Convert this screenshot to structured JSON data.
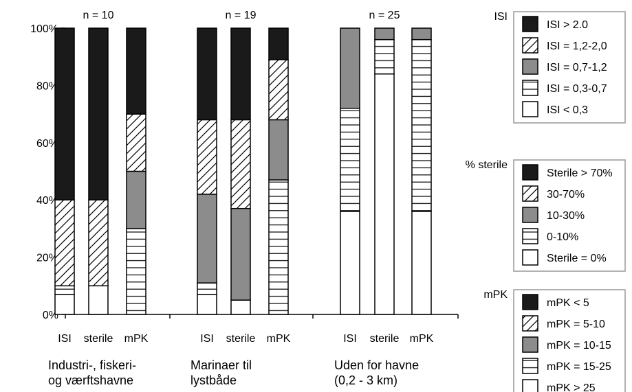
{
  "colors": {
    "black": "#1a1a1a",
    "gray": "#8c8c8c",
    "white": "#ffffff",
    "stroke": "#000000",
    "legend_border": "#999999"
  },
  "chart_data": {
    "type": "bar",
    "stacked": true,
    "ylim": [
      0,
      100
    ],
    "yticks": [
      "0%",
      "20%",
      "40%",
      "60%",
      "80%",
      "100%"
    ],
    "categories": [
      "ISI",
      "sterile",
      "mPK",
      "ISI",
      "sterile",
      "mPK",
      "ISI",
      "sterile",
      "mPK"
    ],
    "groups": [
      {
        "n_label": "n = 10",
        "caption": [
          "Industri-, fiskeri-",
          "og værftshavne"
        ]
      },
      {
        "n_label": "n = 19",
        "caption": [
          "Marinaer til",
          "lystbåde"
        ]
      },
      {
        "n_label": "n = 25",
        "caption": [
          "Uden for havne",
          "(0,2 - 3 km)"
        ]
      }
    ],
    "fill_types": [
      "white",
      "hlines",
      "gray",
      "hatch",
      "black"
    ],
    "bars": [
      [
        7,
        3,
        0,
        30,
        60
      ],
      [
        10,
        0,
        0,
        30,
        60
      ],
      [
        0,
        30,
        20,
        20,
        30
      ],
      [
        7,
        4,
        31,
        26,
        32
      ],
      [
        5,
        0,
        32,
        31,
        32
      ],
      [
        0,
        47,
        21,
        21,
        11
      ],
      [
        36,
        36,
        28,
        0,
        0
      ],
      [
        84,
        12,
        4,
        0,
        0
      ],
      [
        36,
        60,
        4,
        0,
        0
      ]
    ],
    "legends": [
      {
        "title": "ISI",
        "entries": [
          "ISI > 2.0",
          "ISI = 1,2-2,0",
          "ISI = 0,7-1,2",
          "ISI = 0,3-0,7",
          "ISI < 0,3"
        ]
      },
      {
        "title": "% sterile",
        "entries": [
          "Sterile > 70%",
          "30-70%",
          "10-30%",
          "0-10%",
          "Sterile = 0%"
        ]
      },
      {
        "title": "mPK",
        "entries": [
          "mPK < 5",
          "mPK = 5-10",
          "mPK = 10-15",
          "mPK = 15-25",
          "mPK > 25"
        ]
      }
    ],
    "legend_fills": [
      "black",
      "hatch",
      "gray",
      "hlines",
      "white"
    ]
  }
}
